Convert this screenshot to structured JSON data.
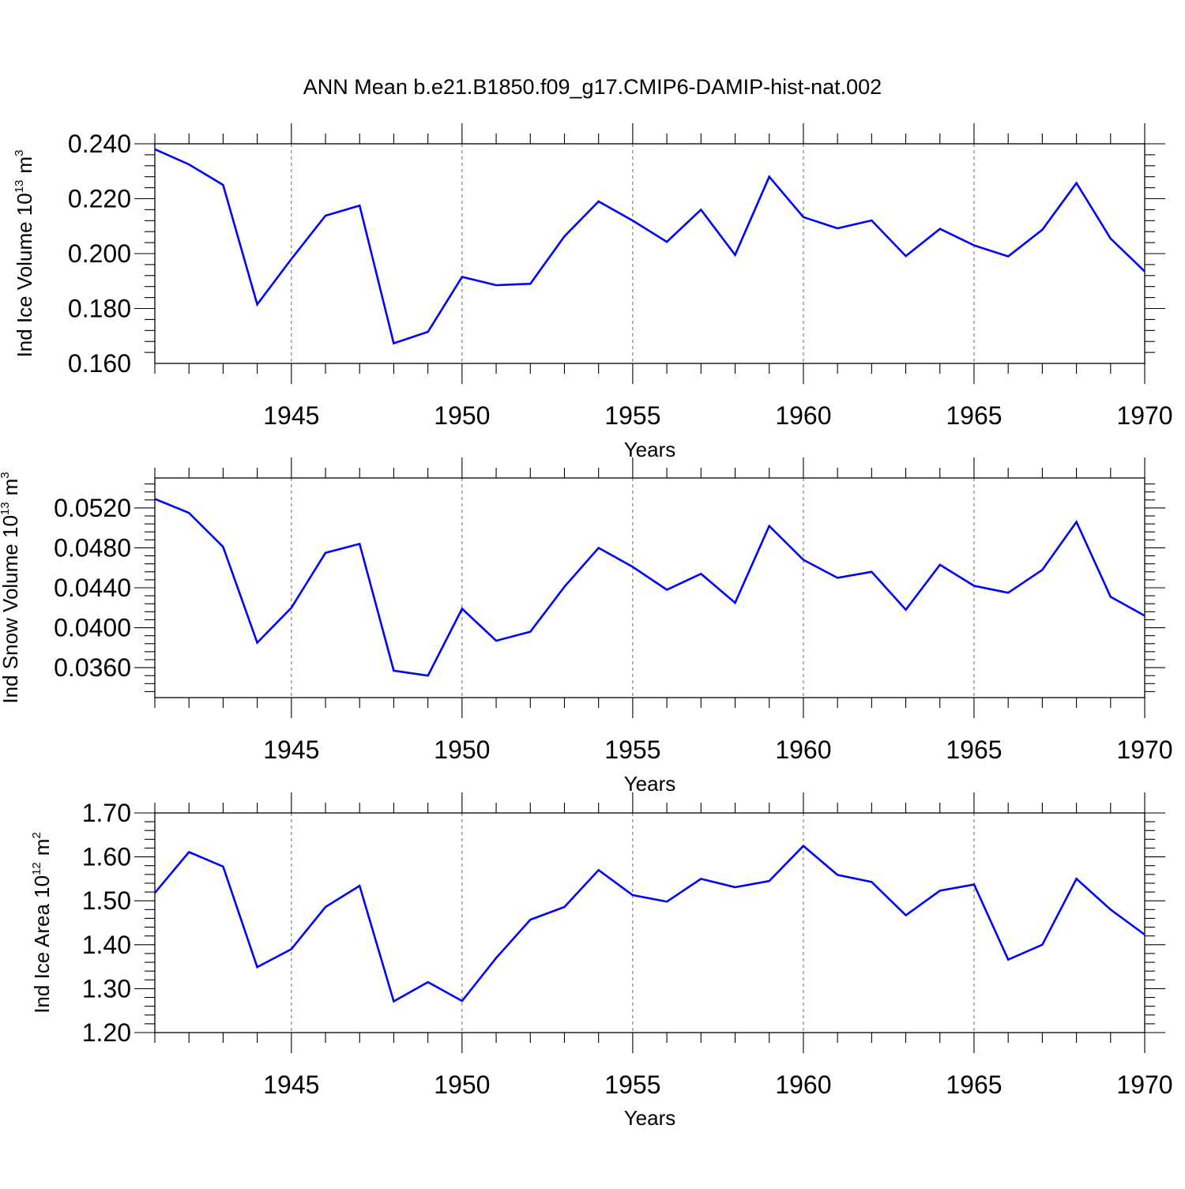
{
  "title": "ANN Mean b.e21.B1850.f09_g17.CMIP6-DAMIP-hist-nat.002",
  "colors": {
    "line": "#0000ff",
    "axis": "#000000",
    "grid": "#666666"
  },
  "chart_data": [
    {
      "type": "line",
      "title": "ANN Mean b.e21.B1850.f09_g17.CMIP6-DAMIP-hist-nat.002",
      "xlabel": "Years",
      "ylabel": {
        "text": "Ind Ice Volume 10",
        "exp": "13",
        "unit": "m",
        "unit_exp": "3"
      },
      "xlim": [
        1941,
        1970
      ],
      "ylim": [
        0.16,
        0.24
      ],
      "xticks": [
        "1945",
        "1950",
        "1955",
        "1960",
        "1965",
        "1970"
      ],
      "yticks": [
        "0.160",
        "0.180",
        "0.200",
        "0.220",
        "0.240"
      ],
      "grid": "vertical dashed at major x ticks",
      "x": [
        1941,
        1942,
        1943,
        1944,
        1945,
        1946,
        1947,
        1948,
        1949,
        1950,
        1951,
        1952,
        1953,
        1954,
        1955,
        1956,
        1957,
        1958,
        1959,
        1960,
        1961,
        1962,
        1963,
        1964,
        1965,
        1966,
        1967,
        1968,
        1969,
        1970
      ],
      "values": [
        0.238,
        0.2325,
        0.225,
        0.1815,
        0.198,
        0.2138,
        0.2175,
        0.1673,
        0.1715,
        0.1915,
        0.1885,
        0.189,
        0.2063,
        0.219,
        0.212,
        0.2043,
        0.216,
        0.1995,
        0.228,
        0.2133,
        0.2092,
        0.2121,
        0.1991,
        0.209,
        0.203,
        0.199,
        0.2087,
        0.2257,
        0.2055,
        0.1935
      ]
    },
    {
      "type": "line",
      "xlabel": "Years",
      "ylabel": {
        "text": "Ind Snow Volume 10",
        "exp": "13",
        "unit": "m",
        "unit_exp": "3"
      },
      "xlim": [
        1941,
        1970
      ],
      "ylim": [
        0.033,
        0.054
      ],
      "xticks": [
        "1945",
        "1950",
        "1955",
        "1960",
        "1965",
        "1970"
      ],
      "yticks": [
        "0.0360",
        "0.0400",
        "0.0440",
        "0.0480",
        "0.0520"
      ],
      "grid": "vertical dashed at major x ticks",
      "x": [
        1941,
        1942,
        1943,
        1944,
        1945,
        1946,
        1947,
        1948,
        1949,
        1950,
        1951,
        1952,
        1953,
        1954,
        1955,
        1956,
        1957,
        1958,
        1959,
        1960,
        1961,
        1962,
        1963,
        1964,
        1965,
        1966,
        1967,
        1968,
        1969,
        1970
      ],
      "values": [
        0.0529,
        0.0515,
        0.0481,
        0.0385,
        0.042,
        0.0475,
        0.0484,
        0.0357,
        0.0352,
        0.0419,
        0.0387,
        0.0396,
        0.0441,
        0.048,
        0.0461,
        0.0438,
        0.0454,
        0.0425,
        0.0502,
        0.0468,
        0.045,
        0.0456,
        0.0418,
        0.0463,
        0.0442,
        0.0435,
        0.0458,
        0.0506,
        0.0431,
        0.0412
      ]
    },
    {
      "type": "line",
      "xlabel": "Years",
      "ylabel": {
        "text": "Ind Ice Area 10",
        "exp": "12",
        "unit": "m",
        "unit_exp": "2"
      },
      "xlim": [
        1941,
        1970
      ],
      "ylim": [
        1.2,
        1.7
      ],
      "xticks": [
        "1945",
        "1950",
        "1955",
        "1960",
        "1965",
        "1970"
      ],
      "yticks": [
        "1.20",
        "1.30",
        "1.40",
        "1.50",
        "1.60",
        "1.70"
      ],
      "grid": "vertical dashed at major x ticks",
      "x": [
        1941,
        1942,
        1943,
        1944,
        1945,
        1946,
        1947,
        1948,
        1949,
        1950,
        1951,
        1952,
        1953,
        1954,
        1955,
        1956,
        1957,
        1958,
        1959,
        1960,
        1961,
        1962,
        1963,
        1964,
        1965,
        1966,
        1967,
        1968,
        1969,
        1970
      ],
      "values": [
        1.518,
        1.611,
        1.578,
        1.349,
        1.39,
        1.486,
        1.534,
        1.271,
        1.315,
        1.272,
        1.37,
        1.457,
        1.486,
        1.57,
        1.513,
        1.498,
        1.55,
        1.531,
        1.545,
        1.625,
        1.559,
        1.543,
        1.467,
        1.523,
        1.537,
        1.366,
        1.4,
        1.55,
        1.48,
        1.423
      ]
    }
  ]
}
